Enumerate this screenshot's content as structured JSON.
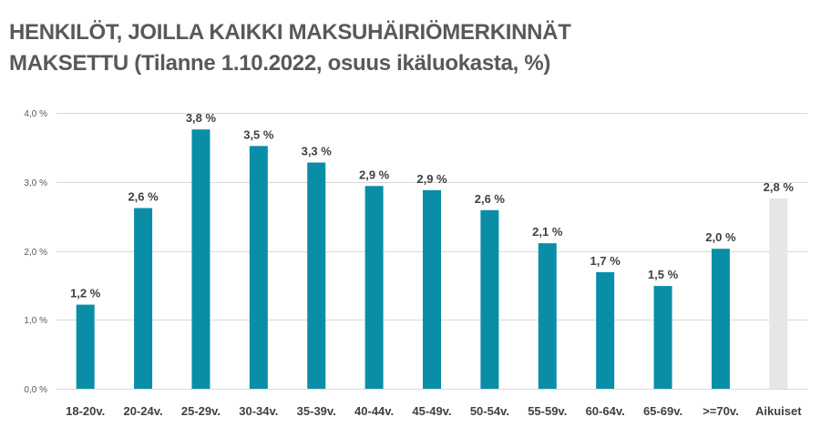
{
  "chart_data": {
    "type": "bar",
    "title_line1": "HENKILÖT, JOILLA KAIKKI MAKSUHÄIRIÖMERKINNÄT",
    "title_line2": "MAKSETTU (Tilanne 1.10.2022, osuus ikäluokasta, %)",
    "categories": [
      "18-20v.",
      "20-24v.",
      "25-29v.",
      "30-34v.",
      "35-39v.",
      "40-44v.",
      "45-49v.",
      "50-54v.",
      "55-59v.",
      "60-64v.",
      "65-69v.",
      ">=70v.",
      "Aikuiset"
    ],
    "values": [
      1.22,
      2.62,
      3.76,
      3.52,
      3.28,
      2.94,
      2.88,
      2.59,
      2.11,
      1.69,
      1.49,
      2.03,
      2.76
    ],
    "data_labels": [
      "1,2 %",
      "2,6 %",
      "3,8 %",
      "3,5 %",
      "3,3 %",
      "2,9 %",
      "2,9 %",
      "2,6 %",
      "2,1 %",
      "1,7 %",
      "1,5 %",
      "2,0 %",
      "2,8 %"
    ],
    "y_ticks": [
      0,
      1,
      2,
      3,
      4
    ],
    "y_tick_labels": [
      "0,0 %",
      "1,0 %",
      "2,0 %",
      "3,0 %",
      "4,0 %"
    ],
    "ylim": [
      0,
      4
    ],
    "grid": true,
    "legend": "none",
    "colors": {
      "bar": "#0a8ea8",
      "highlight_bar": "#e6e6e6",
      "grid": "#d9d9d9",
      "title": "#595959",
      "labels": "#404040"
    },
    "highlight_category": "Aikuiset"
  }
}
